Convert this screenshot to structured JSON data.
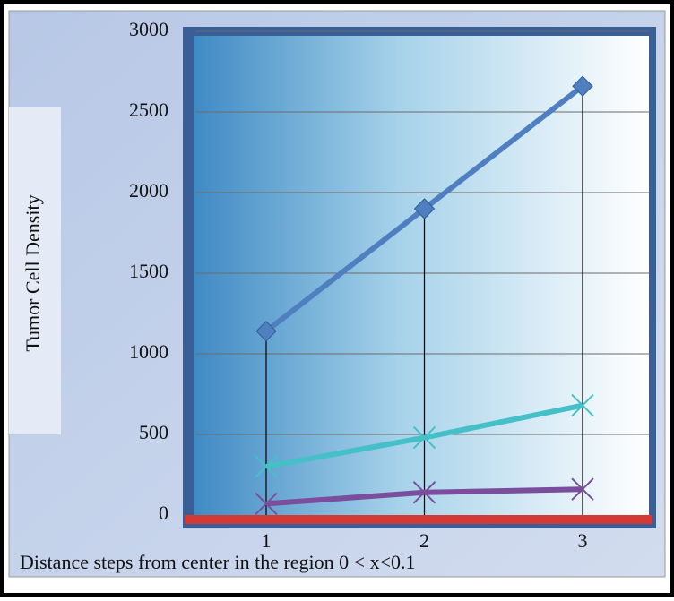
{
  "chart_data": {
    "type": "line",
    "y_label": "Tumor Cell Density",
    "x_label": "Distance steps from center in the region 0 < x<0.1",
    "categories": [
      "1",
      "2",
      "3"
    ],
    "series": [
      {
        "color": "#4f7fc0",
        "marker": "diamond",
        "values": [
          1140,
          1900,
          2660
        ]
      },
      {
        "color": "#46c0c8",
        "marker": "cross",
        "values": [
          300,
          480,
          680
        ]
      },
      {
        "color": "#7a4e9c",
        "marker": "cross",
        "values": [
          70,
          140,
          160
        ]
      }
    ],
    "drop_lines": true,
    "ylim": [
      0,
      3000
    ],
    "yticks": [
      0,
      500,
      1000,
      1500,
      2000,
      2500,
      3000
    ],
    "grid": true
  }
}
